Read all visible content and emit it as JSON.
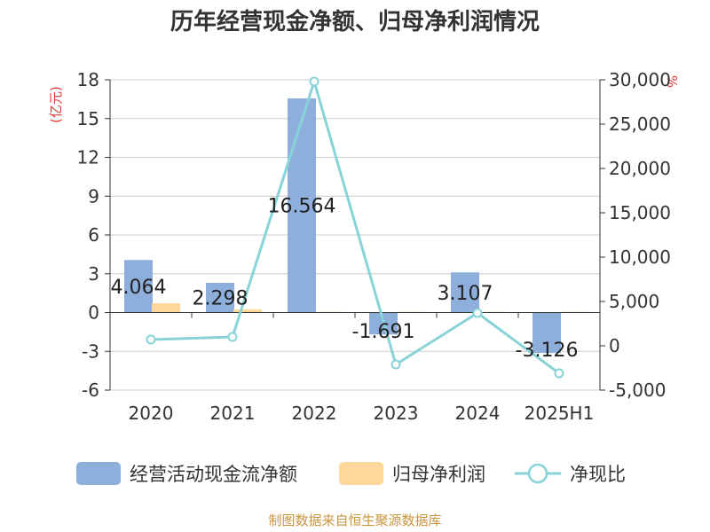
{
  "chart_data": {
    "type": "bar",
    "title": "历年经营现金净额、归母净利润情况",
    "categories": [
      "2020",
      "2021",
      "2022",
      "2023",
      "2024",
      "2025H1"
    ],
    "series": [
      {
        "name": "经营活动现金流净额",
        "type": "bar",
        "axis": "left",
        "color": "#8eaedb",
        "values": [
          4.064,
          2.298,
          16.564,
          -1.691,
          3.107,
          -3.126
        ]
      },
      {
        "name": "归母净利润",
        "type": "bar",
        "axis": "left",
        "color": "#fdd89a",
        "values": [
          0.72,
          0.25,
          0.05,
          0.05,
          0.05,
          0.05
        ]
      },
      {
        "name": "净现比",
        "type": "line",
        "axis": "right",
        "color": "#88d3d8",
        "values": [
          700,
          1000,
          29800,
          -2100,
          3700,
          -3100
        ]
      }
    ],
    "data_labels": [
      "4.064",
      "2.298",
      "16.564",
      "-1.691",
      "3.107",
      "-3.126"
    ],
    "left_axis": {
      "unit": "(亿元)",
      "min": -6,
      "max": 18,
      "ticks": [
        18,
        15,
        12,
        9,
        6,
        3,
        0,
        -3,
        -6
      ],
      "tick_labels": [
        "18",
        "15",
        "12",
        "9",
        "6",
        "3",
        "0",
        "-3",
        "-6"
      ]
    },
    "right_axis": {
      "unit": "%",
      "min": -5000,
      "max": 30000,
      "ticks": [
        30000,
        25000,
        20000,
        15000,
        10000,
        5000,
        0,
        -5000
      ],
      "tick_labels": [
        "30,000",
        "25,000",
        "20,000",
        "15,000",
        "10,000",
        "5,000",
        "0",
        "-5,000"
      ]
    },
    "grid": true,
    "legend_position": "bottom",
    "source": "制图数据来自恒生聚源数据库"
  }
}
